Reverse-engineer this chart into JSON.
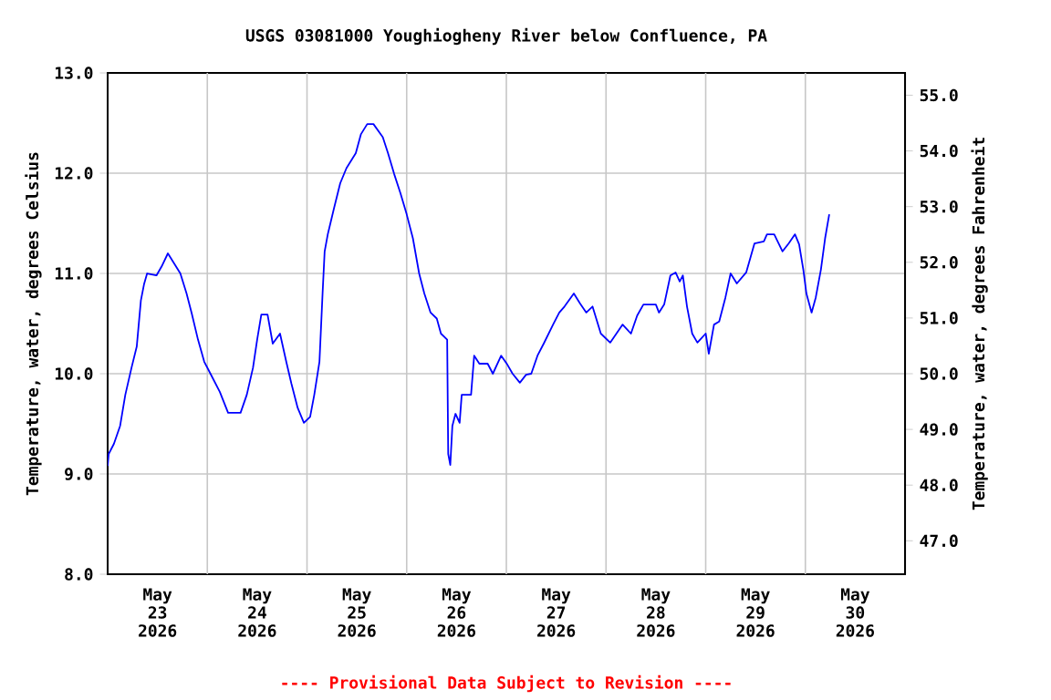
{
  "chart_data": {
    "type": "line",
    "title": "USGS 03081000 Youghiogheny River below Confluence, PA",
    "ylabel": "Temperature, water, degrees Celsius",
    "y2label": "Temperature, water, degrees Fahrenheit",
    "annotations": [
      "---- Provisional Data Subject to Revision ----"
    ],
    "color": "#0000ff",
    "grid": true,
    "x": [
      "2026-05-23T00:00",
      "2026-05-23T00:15",
      "2026-05-23T01:30",
      "2026-05-23T03:00",
      "2026-05-23T04:15",
      "2026-05-23T05:45",
      "2026-05-23T07:00",
      "2026-05-23T08:00",
      "2026-05-23T08:45",
      "2026-05-23T09:30",
      "2026-05-23T11:45",
      "2026-05-23T13:00",
      "2026-05-23T14:30",
      "2026-05-23T16:00",
      "2026-05-23T17:30",
      "2026-05-23T19:00",
      "2026-05-23T20:15",
      "2026-05-23T21:45",
      "2026-05-23T23:15",
      "2026-05-24T00:45",
      "2026-05-24T03:00",
      "2026-05-24T05:00",
      "2026-05-24T08:00",
      "2026-05-24T09:30",
      "2026-05-24T11:00",
      "2026-05-24T12:00",
      "2026-05-24T13:00",
      "2026-05-24T14:30",
      "2026-05-24T15:45",
      "2026-05-24T17:30",
      "2026-05-24T19:00",
      "2026-05-24T20:15",
      "2026-05-24T21:45",
      "2026-05-24T23:15",
      "2026-05-25T00:45",
      "2026-05-25T01:45",
      "2026-05-25T03:00",
      "2026-05-25T03:45",
      "2026-05-25T04:15",
      "2026-05-25T05:00",
      "2026-05-25T06:30",
      "2026-05-25T08:00",
      "2026-05-25T09:30",
      "2026-05-25T11:45",
      "2026-05-25T13:00",
      "2026-05-25T14:30",
      "2026-05-25T16:00",
      "2026-05-25T18:15",
      "2026-05-25T19:30",
      "2026-05-25T21:00",
      "2026-05-25T22:30",
      "2026-05-26T00:00",
      "2026-05-26T01:30",
      "2026-05-26T03:00",
      "2026-05-26T04:15",
      "2026-05-26T05:45",
      "2026-05-26T07:15",
      "2026-05-26T08:15",
      "2026-05-26T09:45",
      "2026-05-26T10:00",
      "2026-05-26T10:30",
      "2026-05-26T11:00",
      "2026-05-26T11:45",
      "2026-05-26T12:45",
      "2026-05-26T13:15",
      "2026-05-26T15:30",
      "2026-05-26T16:15",
      "2026-05-26T17:30",
      "2026-05-26T19:30",
      "2026-05-26T20:45",
      "2026-05-26T22:45",
      "2026-05-27T00:15",
      "2026-05-27T01:30",
      "2026-05-27T03:15",
      "2026-05-27T04:45",
      "2026-05-27T06:00",
      "2026-05-27T07:30",
      "2026-05-27T09:00",
      "2026-05-27T11:15",
      "2026-05-27T12:45",
      "2026-05-27T14:00",
      "2026-05-27T16:15",
      "2026-05-27T17:45",
      "2026-05-27T19:15",
      "2026-05-27T20:45",
      "2026-05-27T22:45",
      "2026-05-28T01:00",
      "2026-05-28T02:30",
      "2026-05-28T04:00",
      "2026-05-28T06:00",
      "2026-05-28T07:30",
      "2026-05-28T09:00",
      "2026-05-28T12:00",
      "2026-05-28T12:45",
      "2026-05-28T14:00",
      "2026-05-28T15:30",
      "2026-05-28T16:45",
      "2026-05-28T17:45",
      "2026-05-28T18:30",
      "2026-05-28T19:30",
      "2026-05-28T20:45",
      "2026-05-28T22:00",
      "2026-05-29T00:00",
      "2026-05-29T00:45",
      "2026-05-29T02:00",
      "2026-05-29T03:15",
      "2026-05-29T04:45",
      "2026-05-29T06:00",
      "2026-05-29T07:30",
      "2026-05-29T09:45",
      "2026-05-29T11:45",
      "2026-05-29T14:00",
      "2026-05-29T14:45",
      "2026-05-29T16:30",
      "2026-05-29T18:30",
      "2026-05-29T20:00",
      "2026-05-29T21:30",
      "2026-05-29T22:30",
      "2026-05-29T23:30",
      "2026-05-30T00:15",
      "2026-05-30T01:30",
      "2026-05-30T02:30",
      "2026-05-30T03:45",
      "2026-05-30T04:45",
      "2026-05-30T05:45"
    ],
    "values": [
      9.08,
      9.2,
      9.3,
      9.48,
      9.79,
      10.06,
      10.27,
      10.73,
      10.89,
      11.0,
      10.98,
      11.07,
      11.2,
      11.1,
      11.0,
      10.8,
      10.6,
      10.34,
      10.12,
      10.0,
      9.82,
      9.61,
      9.61,
      9.79,
      10.06,
      10.34,
      10.59,
      10.59,
      10.3,
      10.4,
      10.12,
      9.9,
      9.66,
      9.51,
      9.57,
      9.79,
      10.12,
      10.8,
      11.22,
      11.39,
      11.65,
      11.9,
      12.05,
      12.2,
      12.39,
      12.49,
      12.49,
      12.36,
      12.2,
      11.99,
      11.8,
      11.59,
      11.35,
      11.0,
      10.8,
      10.61,
      10.55,
      10.4,
      10.34,
      9.2,
      9.09,
      9.48,
      9.6,
      9.51,
      9.79,
      9.79,
      10.18,
      10.1,
      10.1,
      10.0,
      10.18,
      10.09,
      10.0,
      9.91,
      9.99,
      10.0,
      10.18,
      10.3,
      10.49,
      10.61,
      10.67,
      10.8,
      10.7,
      10.61,
      10.67,
      10.4,
      10.31,
      10.4,
      10.49,
      10.4,
      10.58,
      10.69,
      10.69,
      10.61,
      10.69,
      10.98,
      11.01,
      10.92,
      10.98,
      10.67,
      10.4,
      10.31,
      10.4,
      10.2,
      10.49,
      10.52,
      10.76,
      11.0,
      10.9,
      11.01,
      11.3,
      11.32,
      11.39,
      11.39,
      11.22,
      11.3,
      11.39,
      11.29,
      11.04,
      10.8,
      10.61,
      10.76,
      11.04,
      11.35,
      11.59
    ],
    "xlim": [
      "2026-05-23T00:00",
      "2026-05-31T00:00"
    ],
    "xticks": [
      {
        "value": "2026-05-23T12:00",
        "label": "May 23 2026"
      },
      {
        "value": "2026-05-24T12:00",
        "label": "May 24 2026"
      },
      {
        "value": "2026-05-25T12:00",
        "label": "May 25 2026"
      },
      {
        "value": "2026-05-26T12:00",
        "label": "May 26 2026"
      },
      {
        "value": "2026-05-27T12:00",
        "label": "May 27 2026"
      },
      {
        "value": "2026-05-28T12:00",
        "label": "May 28 2026"
      },
      {
        "value": "2026-05-29T12:00",
        "label": "May 29 2026"
      },
      {
        "value": "2026-05-30T12:00",
        "label": "May 30 2026"
      },
      {
        "value": "2026-05-24T00:00",
        "label": null
      },
      {
        "value": "2026-05-25T00:00",
        "label": null
      },
      {
        "value": "2026-05-26T00:00",
        "label": null
      },
      {
        "value": "2026-05-27T00:00",
        "label": null
      },
      {
        "value": "2026-05-28T00:00",
        "label": null
      },
      {
        "value": "2026-05-29T00:00",
        "label": null
      },
      {
        "value": "2026-05-30T00:00",
        "label": null
      }
    ],
    "ylim": [
      8,
      13
    ],
    "yticks": [
      {
        "value": 8,
        "label": "8.0"
      },
      {
        "value": 9,
        "label": "9.0"
      },
      {
        "value": 10,
        "label": "10.0"
      },
      {
        "value": 11,
        "label": "11.0"
      },
      {
        "value": 12,
        "label": "12.0"
      },
      {
        "value": 13,
        "label": "13.0"
      }
    ],
    "y2lim": [
      46.4,
      55.4
    ],
    "y2ticks": [
      {
        "value": 47,
        "label": "47.0"
      },
      {
        "value": 48,
        "label": "48.0"
      },
      {
        "value": 49,
        "label": "49.0"
      },
      {
        "value": 50,
        "label": "50.0"
      },
      {
        "value": 51,
        "label": "51.0"
      },
      {
        "value": 52,
        "label": "52.0"
      },
      {
        "value": 53,
        "label": "53.0"
      },
      {
        "value": 54,
        "label": "54.0"
      },
      {
        "value": 55,
        "label": "55.0"
      }
    ]
  }
}
